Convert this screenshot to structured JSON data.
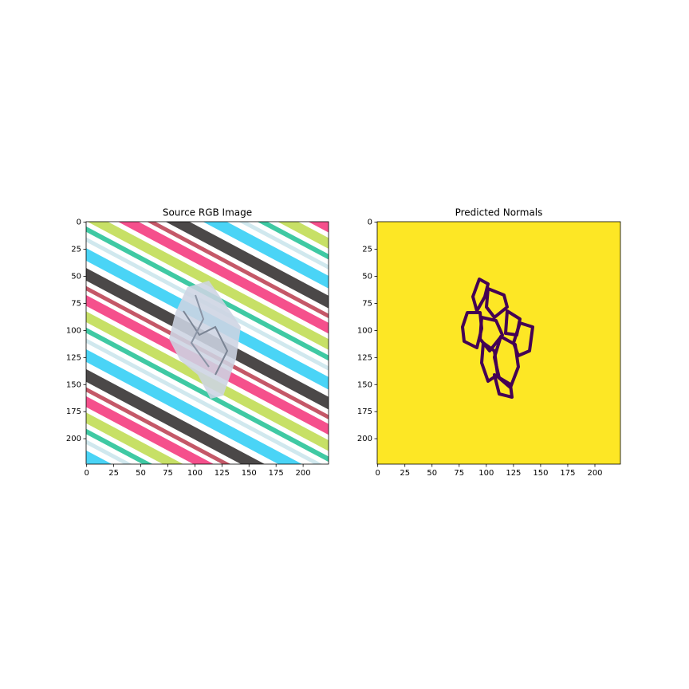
{
  "chart_data": [
    {
      "type": "image",
      "title": "Source RGB Image",
      "xlim": [
        -0.5,
        223.5
      ],
      "ylim": [
        223.5,
        -0.5
      ],
      "xticks": [
        0,
        25,
        50,
        75,
        100,
        125,
        150,
        175,
        200
      ],
      "yticks": [
        0,
        25,
        50,
        75,
        100,
        125,
        150,
        175,
        200
      ]
    },
    {
      "type": "image",
      "title": "Predicted Normals",
      "xlim": [
        -0.5,
        223.5
      ],
      "ylim": [
        223.5,
        -0.5
      ],
      "xticks": [
        0,
        25,
        50,
        75,
        100,
        125,
        150,
        175,
        200
      ],
      "yticks": [
        0,
        25,
        50,
        75,
        100,
        125,
        150,
        175,
        200
      ]
    }
  ]
}
